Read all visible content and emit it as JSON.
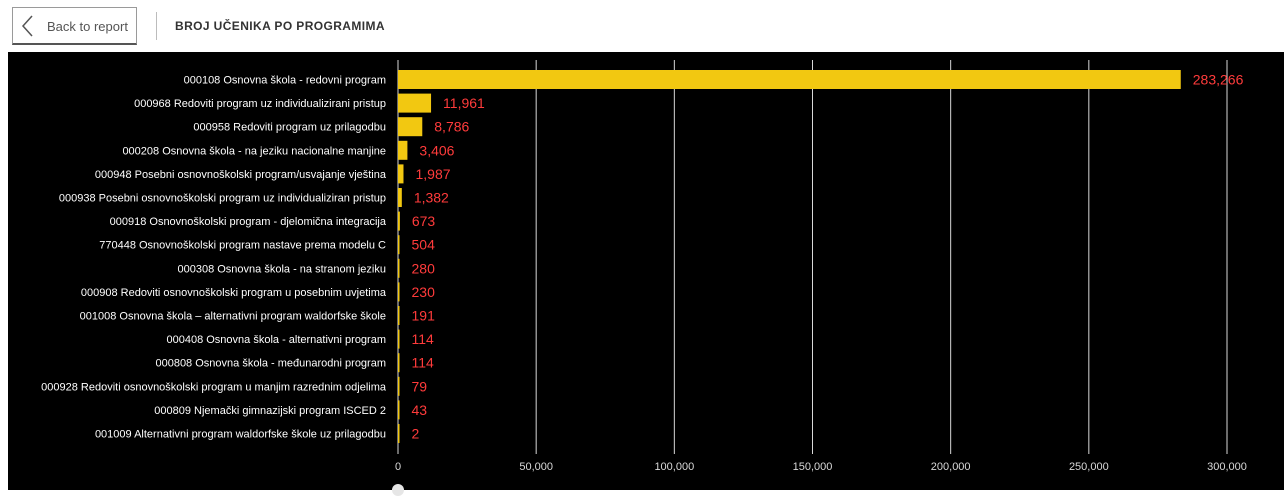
{
  "header": {
    "back_label": "Back to report",
    "title": "BROJ UČENIKA PO PROGRAMIMA"
  },
  "colors": {
    "bar": "#f2c811",
    "data_label": "#ff3b3b",
    "category_label": "#ffffff",
    "tick_label": "#d9d9d9",
    "gridline": "#ffffff",
    "background": "#000000"
  },
  "chart_data": {
    "type": "bar",
    "orientation": "horizontal",
    "categories": [
      "000108 Osnovna škola - redovni program",
      "000968 Redoviti program uz individualizirani pristup",
      "000958 Redoviti program uz prilagodbu",
      "000208 Osnovna škola - na jeziku nacionalne manjine",
      "000948 Posebni osnovnoškolski program/usvajanje vještina",
      "000938 Posebni osnovnoškolski program uz individualiziran pristup",
      "000918 Osnovnoškolski program - djelomična integracija",
      "770448 Osnovnoškolski program nastave prema modelu C",
      "000308 Osnovna škola - na stranom jeziku",
      "000908 Redoviti osnovnoškolski program u posebnim uvjetima",
      "001008 Osnovna škola – alternativni program waldorfske škole",
      "000408 Osnovna škola - alternativni program",
      "000808 Osnovna škola - međunarodni program",
      "000928 Redoviti osnovnoškolski program u manjim razrednim odjelima",
      "000809 Njemački gimnazijski program ISCED 2",
      "001009 Alternativni program waldorfske škole uz prilagodbu"
    ],
    "values": [
      283266,
      11961,
      8786,
      3406,
      1987,
      1382,
      673,
      504,
      280,
      230,
      191,
      114,
      114,
      79,
      43,
      2
    ],
    "value_labels": [
      "283,266",
      "11,961",
      "8,786",
      "3,406",
      "1,987",
      "1,382",
      "673",
      "504",
      "280",
      "230",
      "191",
      "114",
      "114",
      "79",
      "43",
      "2"
    ],
    "xlim": [
      0,
      300000
    ],
    "x_ticks": [
      0,
      50000,
      100000,
      150000,
      200000,
      250000,
      300000
    ],
    "x_tick_labels": [
      "0",
      "50,000",
      "100,000",
      "150,000",
      "200,000",
      "250,000",
      "300,000"
    ],
    "grid": true,
    "title": "",
    "xlabel": "",
    "ylabel": ""
  }
}
